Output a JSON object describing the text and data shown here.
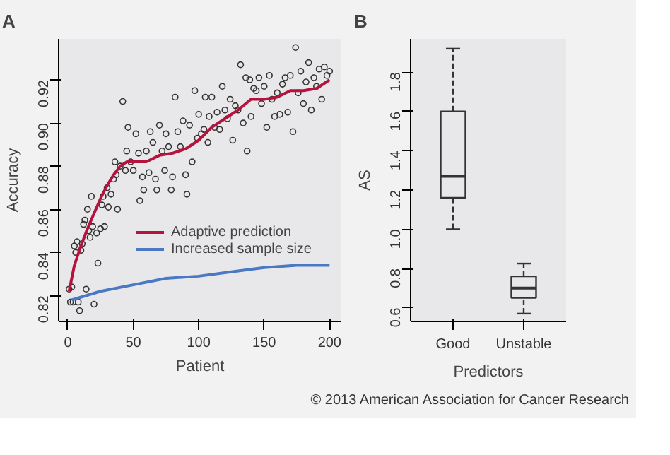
{
  "chart_data": [
    {
      "type": "scatter",
      "title": "A",
      "xlabel": "Patient",
      "ylabel": "Accuracy",
      "xlim": [
        -7,
        209
      ],
      "ylim": [
        0.808,
        0.939
      ],
      "xticks": [
        0,
        50,
        100,
        150,
        200
      ],
      "yticks": [
        0.82,
        0.84,
        0.86,
        0.88,
        {
          "value": 0.9,
          "label": "0.90"
        },
        0.92
      ],
      "legend": "bottom right",
      "series": [
        {
          "type": "scatter",
          "marker": "circle",
          "color": "#333333",
          "x": [
            1,
            2,
            3,
            4,
            5,
            6,
            7,
            8,
            9,
            10,
            11,
            12,
            13,
            14,
            15,
            16,
            17,
            18,
            19,
            20,
            22,
            23,
            25,
            26,
            27,
            28,
            30,
            31,
            33,
            35,
            36,
            37,
            38,
            40,
            42,
            44,
            45,
            46,
            48,
            50,
            52,
            54,
            55,
            57,
            58,
            60,
            62,
            63,
            65,
            67,
            68,
            70,
            72,
            74,
            75,
            77,
            79,
            80,
            82,
            84,
            86,
            88,
            90,
            91,
            93,
            95,
            97,
            99,
            100,
            102,
            104,
            105,
            107,
            108,
            110,
            112,
            114,
            116,
            118,
            120,
            122,
            124,
            126,
            128,
            130,
            132,
            134,
            136,
            137,
            139,
            140,
            142,
            144,
            146,
            148,
            150,
            152,
            154,
            156,
            158,
            160,
            162,
            164,
            166,
            168,
            170,
            172,
            174,
            176,
            178,
            180,
            182,
            184,
            186,
            188,
            190,
            192,
            194,
            196,
            198,
            200
          ],
          "values": [
            0.823,
            0.817,
            0.824,
            0.817,
            0.843,
            0.84,
            0.845,
            0.817,
            0.813,
            0.841,
            0.844,
            0.853,
            0.855,
            0.823,
            0.86,
            0.85,
            0.847,
            0.866,
            0.852,
            0.816,
            0.849,
            0.835,
            0.851,
            0.862,
            0.866,
            0.852,
            0.87,
            0.861,
            0.867,
            0.874,
            0.882,
            0.876,
            0.86,
            0.88,
            0.91,
            0.878,
            0.887,
            0.898,
            0.882,
            0.878,
            0.895,
            0.886,
            0.864,
            0.875,
            0.869,
            0.887,
            0.877,
            0.896,
            0.891,
            0.874,
            0.869,
            0.899,
            0.887,
            0.878,
            0.895,
            0.889,
            0.869,
            0.875,
            0.912,
            0.896,
            0.889,
            0.901,
            0.876,
            0.867,
            0.899,
            0.882,
            0.915,
            0.893,
            0.904,
            0.895,
            0.897,
            0.912,
            0.891,
            0.903,
            0.912,
            0.898,
            0.905,
            0.897,
            0.917,
            0.906,
            0.902,
            0.911,
            0.892,
            0.908,
            0.906,
            0.927,
            0.9,
            0.921,
            0.887,
            0.92,
            0.903,
            0.916,
            0.915,
            0.921,
            0.909,
            0.917,
            0.898,
            0.922,
            0.911,
            0.903,
            0.914,
            0.904,
            0.918,
            0.921,
            0.905,
            0.922,
            0.896,
            0.935,
            0.914,
            0.924,
            0.909,
            0.919,
            0.928,
            0.906,
            0.921,
            0.917,
            0.925,
            0.911,
            0.926,
            0.922,
            0.924
          ]
        },
        {
          "type": "line",
          "name": "Adaptive prediction",
          "color": "#b5123e",
          "x": [
            1,
            5,
            10,
            15,
            20,
            25,
            30,
            35,
            40,
            45,
            50,
            60,
            70,
            80,
            90,
            100,
            110,
            120,
            130,
            140,
            150,
            160,
            170,
            180,
            190,
            200
          ],
          "values": [
            0.822,
            0.834,
            0.843,
            0.851,
            0.858,
            0.865,
            0.871,
            0.876,
            0.88,
            0.882,
            0.882,
            0.882,
            0.885,
            0.886,
            0.888,
            0.892,
            0.898,
            0.902,
            0.906,
            0.911,
            0.911,
            0.912,
            0.915,
            0.915,
            0.916,
            0.92
          ]
        },
        {
          "type": "line",
          "name": "Increased sample size",
          "color": "#4a78c2",
          "x": [
            3,
            25,
            50,
            75,
            100,
            125,
            150,
            175,
            200
          ],
          "values": [
            0.818,
            0.822,
            0.825,
            0.828,
            0.829,
            0.831,
            0.833,
            0.834,
            0.834
          ]
        }
      ]
    },
    {
      "type": "box",
      "title": "B",
      "xlabel": "Predictors",
      "ylabel": "AS",
      "categories": [
        "Good",
        "Unstable"
      ],
      "ylim": [
        0.53,
        1.97
      ],
      "yticks": [
        0.6,
        0.8,
        {
          "value": 1,
          "label": "1.0"
        },
        1.2,
        1.4,
        1.6,
        1.8
      ],
      "boxes": [
        {
          "low": 1.0,
          "q1": 1.16,
          "median": 1.27,
          "q3": 1.6,
          "high": 1.92
        },
        {
          "low": 0.57,
          "q1": 0.65,
          "median": 0.7,
          "q3": 0.76,
          "high": 0.825
        }
      ],
      "annotations": [
        "© 2013 American Association for Cancer Research"
      ]
    }
  ]
}
